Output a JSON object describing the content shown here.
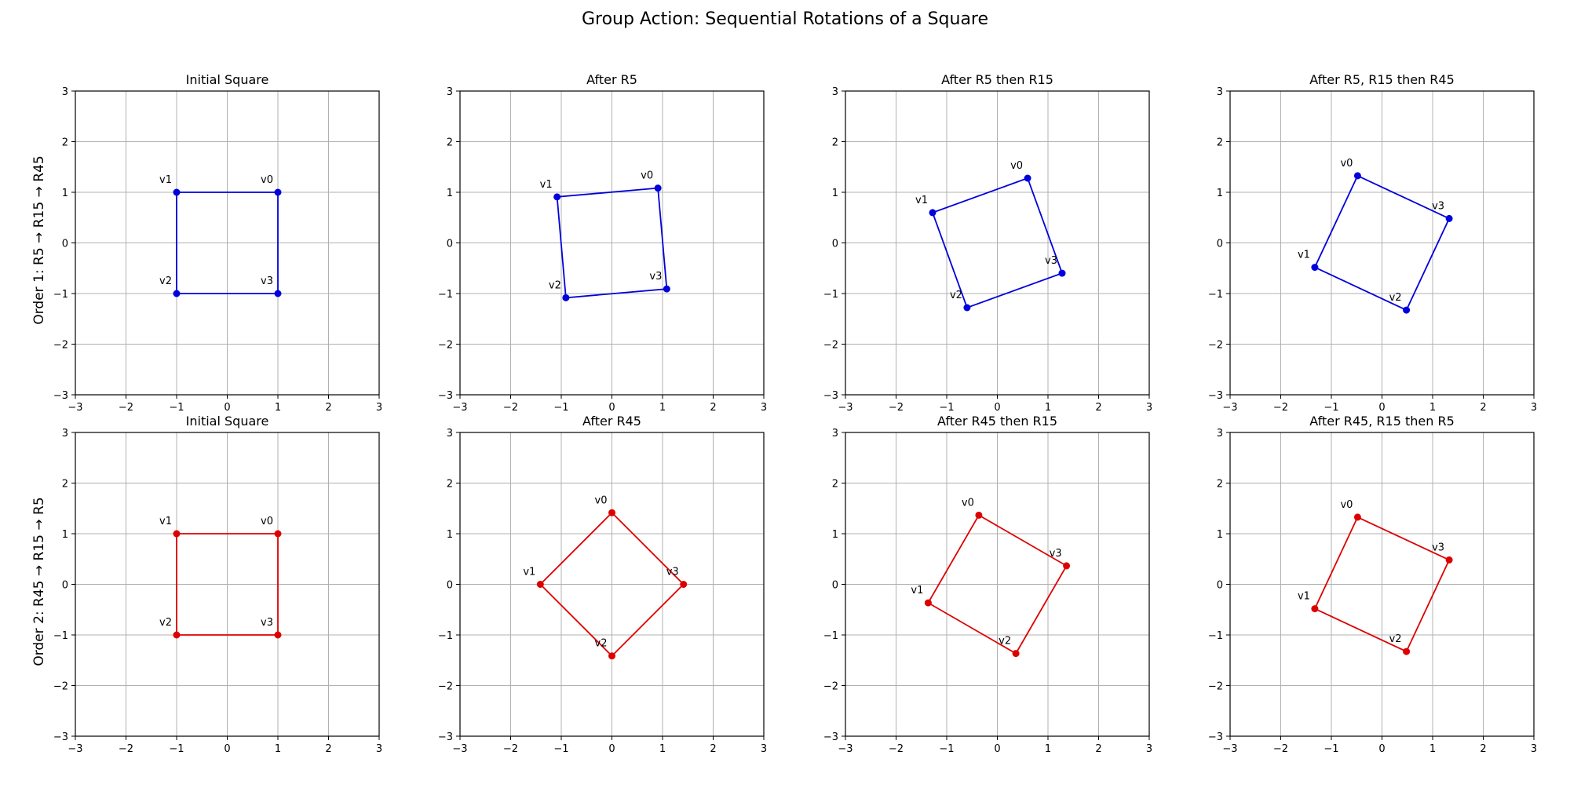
{
  "suptitle": "Group Action: Sequential Rotations of a Square",
  "chart_data": {
    "type": "scatter",
    "rows": [
      {
        "label": "Order 1: R5 → R15 → R45",
        "color": "#0000dd",
        "subplots": [
          {
            "title": "Initial Square",
            "vertices": [
              {
                "name": "v0",
                "x": 1.0,
                "y": 1.0
              },
              {
                "name": "v1",
                "x": -1.0,
                "y": 1.0
              },
              {
                "name": "v2",
                "x": -1.0,
                "y": -1.0
              },
              {
                "name": "v3",
                "x": 1.0,
                "y": -1.0
              }
            ]
          },
          {
            "title": "After R5",
            "vertices": [
              {
                "name": "v0",
                "x": 0.909,
                "y": 1.083
              },
              {
                "name": "v1",
                "x": -1.083,
                "y": 0.909
              },
              {
                "name": "v2",
                "x": -0.909,
                "y": -1.083
              },
              {
                "name": "v3",
                "x": 1.083,
                "y": -0.909
              }
            ]
          },
          {
            "title": "After R5 then R15",
            "vertices": [
              {
                "name": "v0",
                "x": 0.598,
                "y": 1.279
              },
              {
                "name": "v1",
                "x": -1.279,
                "y": 0.598
              },
              {
                "name": "v2",
                "x": -0.598,
                "y": -1.279
              },
              {
                "name": "v3",
                "x": 1.279,
                "y": -0.598
              }
            ]
          },
          {
            "title": "After R5, R15 then R45",
            "vertices": [
              {
                "name": "v0",
                "x": -0.482,
                "y": 1.327
              },
              {
                "name": "v1",
                "x": -1.327,
                "y": -0.482
              },
              {
                "name": "v2",
                "x": 0.482,
                "y": -1.327
              },
              {
                "name": "v3",
                "x": 1.327,
                "y": 0.482
              }
            ]
          }
        ]
      },
      {
        "label": "Order 2: R45 → R15 → R5",
        "color": "#dd0000",
        "subplots": [
          {
            "title": "Initial Square",
            "vertices": [
              {
                "name": "v0",
                "x": 1.0,
                "y": 1.0
              },
              {
                "name": "v1",
                "x": -1.0,
                "y": 1.0
              },
              {
                "name": "v2",
                "x": -1.0,
                "y": -1.0
              },
              {
                "name": "v3",
                "x": 1.0,
                "y": -1.0
              }
            ]
          },
          {
            "title": "After R45",
            "vertices": [
              {
                "name": "v0",
                "x": 0.0,
                "y": 1.414
              },
              {
                "name": "v1",
                "x": -1.414,
                "y": 0.0
              },
              {
                "name": "v2",
                "x": 0.0,
                "y": -1.414
              },
              {
                "name": "v3",
                "x": 1.414,
                "y": 0.0
              }
            ]
          },
          {
            "title": "After R45 then R15",
            "vertices": [
              {
                "name": "v0",
                "x": -0.366,
                "y": 1.366
              },
              {
                "name": "v1",
                "x": -1.366,
                "y": -0.366
              },
              {
                "name": "v2",
                "x": 0.366,
                "y": -1.366
              },
              {
                "name": "v3",
                "x": 1.366,
                "y": 0.366
              }
            ]
          },
          {
            "title": "After R45, R15 then R5",
            "vertices": [
              {
                "name": "v0",
                "x": -0.482,
                "y": 1.327
              },
              {
                "name": "v1",
                "x": -1.327,
                "y": -0.482
              },
              {
                "name": "v2",
                "x": 0.482,
                "y": -1.327
              },
              {
                "name": "v3",
                "x": 1.327,
                "y": 0.482
              }
            ]
          }
        ]
      }
    ],
    "xlim": [
      -3,
      3
    ],
    "ylim": [
      -3,
      3
    ],
    "xticks": [
      -3,
      -2,
      -1,
      0,
      1,
      2,
      3
    ],
    "yticks": [
      -3,
      -2,
      -1,
      0,
      1,
      2,
      3
    ],
    "grid": true
  }
}
